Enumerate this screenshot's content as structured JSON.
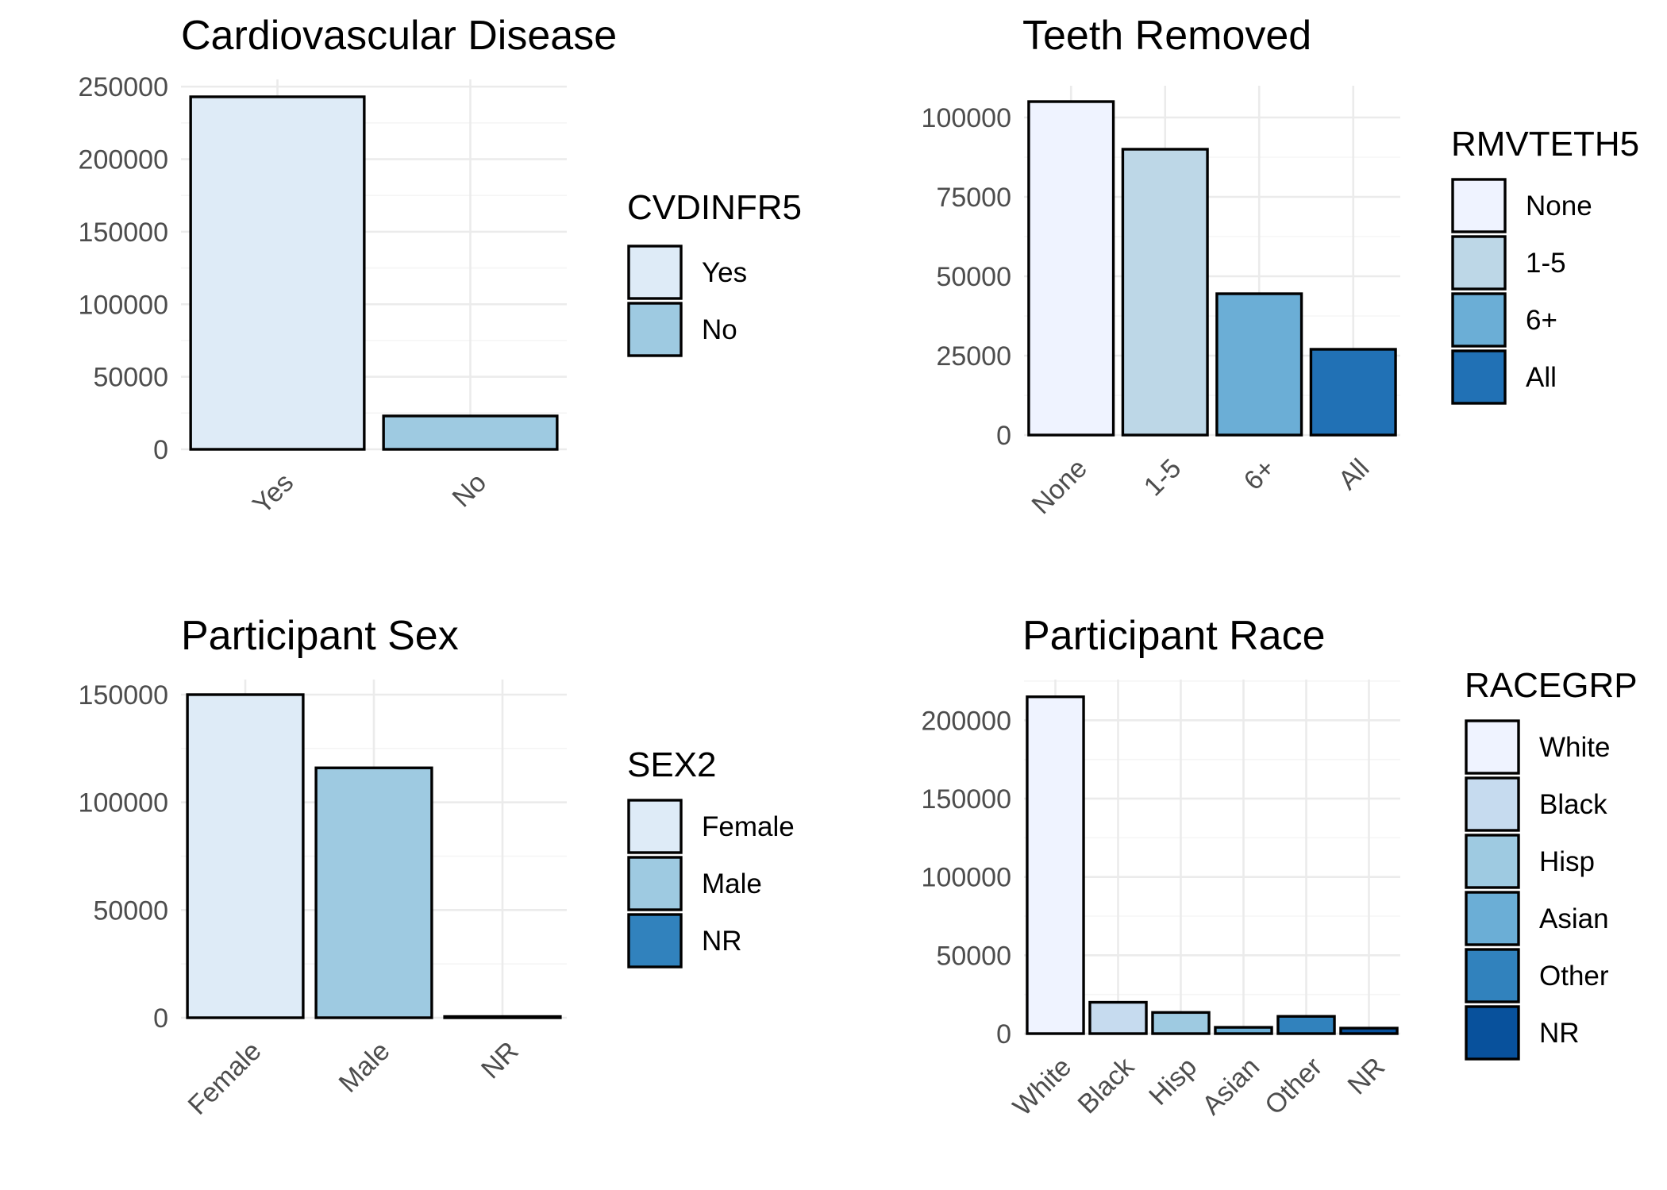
{
  "chart_data": [
    {
      "type": "bar",
      "title": "Cardiovascular Disease",
      "categories": [
        "Yes",
        "No"
      ],
      "values": [
        243000,
        23000
      ],
      "colors": [
        "#deebf7",
        "#9ecae1"
      ],
      "ylim": [
        0,
        255000
      ],
      "yticks": [
        0,
        50000,
        100000,
        150000,
        200000,
        250000
      ],
      "ytick_labels": [
        "0",
        "50000",
        "100000",
        "150000",
        "200000",
        "250000"
      ],
      "legend_title": "CVDINFR5",
      "legend_position": "right",
      "grid": true
    },
    {
      "type": "bar",
      "title": "Teeth Removed",
      "categories": [
        "None",
        "1-5",
        "6+",
        "All"
      ],
      "values": [
        105000,
        90000,
        44500,
        27000
      ],
      "colors": [
        "#eff3ff",
        "#bdd7e7",
        "#6baed6",
        "#2171b5"
      ],
      "ylim": [
        0,
        110000
      ],
      "yticks": [
        0,
        25000,
        50000,
        75000,
        100000
      ],
      "ytick_labels": [
        "0",
        "25000",
        "50000",
        "75000",
        "100000"
      ],
      "legend_title": "RMVTETH5",
      "legend_position": "right",
      "grid": true
    },
    {
      "type": "bar",
      "title": "Participant Sex",
      "categories": [
        "Female",
        "Male",
        "NR"
      ],
      "values": [
        150000,
        116000,
        500
      ],
      "colors": [
        "#deebf7",
        "#9ecae1",
        "#3182bd"
      ],
      "ylim": [
        0,
        157000
      ],
      "yticks": [
        0,
        50000,
        100000,
        150000
      ],
      "ytick_labels": [
        "0",
        "50000",
        "100000",
        "150000"
      ],
      "legend_title": "SEX2",
      "legend_position": "right",
      "grid": true
    },
    {
      "type": "bar",
      "title": "Participant Race",
      "categories": [
        "White",
        "Black",
        "Hisp",
        "Asian",
        "Other",
        "NR"
      ],
      "values": [
        215000,
        20000,
        13500,
        4000,
        11000,
        3500
      ],
      "colors": [
        "#eff3ff",
        "#c6dbef",
        "#9ecae1",
        "#6baed6",
        "#3182bd",
        "#08519c"
      ],
      "ylim": [
        0,
        226000
      ],
      "yticks": [
        0,
        50000,
        100000,
        150000,
        200000
      ],
      "ytick_labels": [
        "0",
        "50000",
        "100000",
        "150000",
        "200000"
      ],
      "legend_title": "RACEGRP",
      "legend_position": "right",
      "grid": true
    }
  ]
}
